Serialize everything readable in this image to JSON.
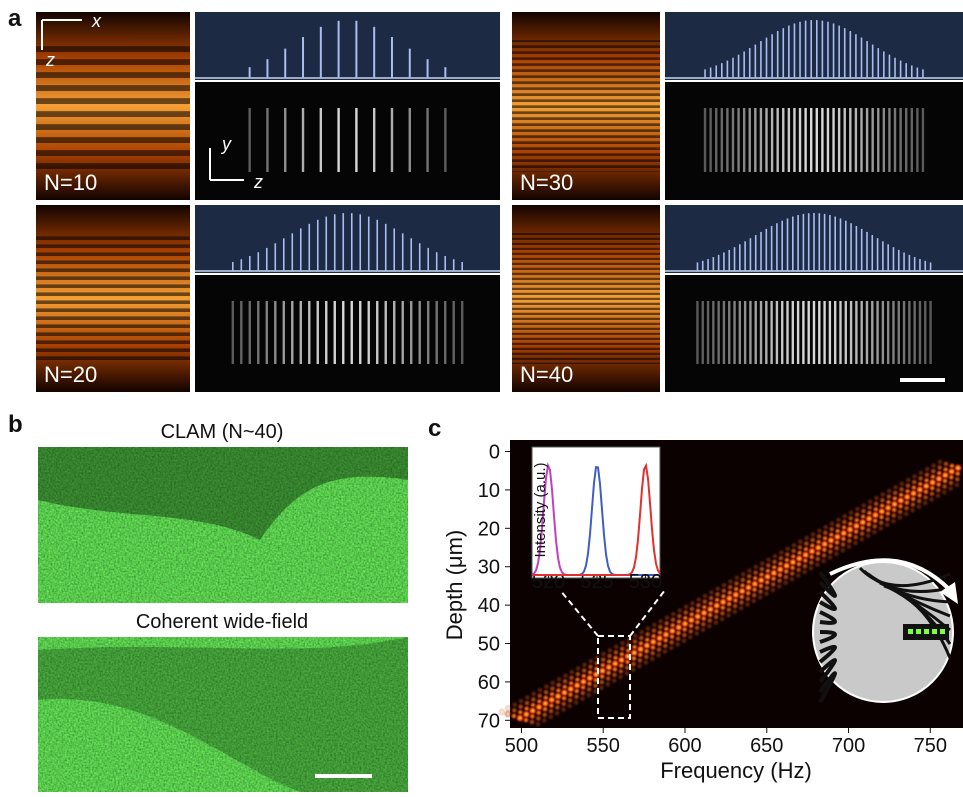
{
  "panel_a": {
    "label": "a",
    "axes_top": {
      "x": "x",
      "z": "z"
    },
    "axes_bottom": {
      "y": "y",
      "z": "z"
    },
    "subpanels": [
      {
        "label": "N=10"
      },
      {
        "label": "N=30"
      },
      {
        "label": "N=20"
      },
      {
        "label": "N=40"
      }
    ]
  },
  "panel_b": {
    "label": "b",
    "images": [
      {
        "title": "CLAM (N~40)"
      },
      {
        "title": "Coherent wide-field"
      }
    ]
  },
  "panel_c": {
    "label": "c",
    "x_label": "Frequency (Hz)",
    "y_label": "Depth (μm)",
    "xlim": [
      493,
      770
    ],
    "xticks": [
      500,
      550,
      600,
      650,
      700,
      750
    ],
    "ylim": [
      -3,
      72
    ],
    "yticks": [
      0,
      10,
      20,
      30,
      40,
      50,
      60,
      70
    ],
    "inset": {
      "y_label": "Intensity (a.u.)",
      "xlim": [
        518.3,
        531.5
      ],
      "xticks": [
        520,
        525,
        530
      ]
    }
  }
}
